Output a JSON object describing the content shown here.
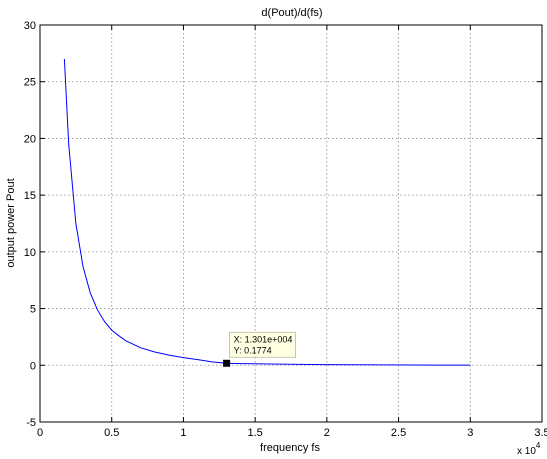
{
  "chart_data": {
    "type": "line",
    "title": "d(Pout)/d(fs)",
    "xlabel": "frequency fs",
    "ylabel": "output power Pout",
    "x_multiplier_label": "x 10",
    "x_multiplier_exponent": "4",
    "xlim": [
      0,
      35000
    ],
    "ylim": [
      -5,
      30
    ],
    "x_ticks": [
      0,
      5000,
      10000,
      15000,
      20000,
      25000,
      30000,
      35000
    ],
    "x_tick_labels": [
      "0",
      "0.5",
      "1",
      "1.5",
      "2",
      "2.5",
      "3",
      "3.5"
    ],
    "y_ticks": [
      -5,
      0,
      5,
      10,
      15,
      20,
      25,
      30
    ],
    "y_tick_labels": [
      "-5",
      "0",
      "5",
      "10",
      "15",
      "20",
      "25",
      "30"
    ],
    "grid": true,
    "series": [
      {
        "color": "#0000ff",
        "x": [
          1700,
          2000,
          2500,
          3000,
          3500,
          4000,
          4500,
          5000,
          5500,
          6000,
          7000,
          8000,
          9000,
          10000,
          11000,
          12000,
          13010,
          14000,
          16000,
          18000,
          20000,
          22000,
          24000,
          26000,
          28000,
          30000
        ],
        "y": [
          27.0,
          19.5,
          12.5,
          8.7,
          6.4,
          4.9,
          3.85,
          3.1,
          2.6,
          2.15,
          1.55,
          1.17,
          0.9,
          0.68,
          0.5,
          0.3,
          0.1774,
          0.15,
          0.11,
          0.08,
          0.06,
          0.045,
          0.035,
          0.025,
          0.018,
          0.012
        ]
      }
    ],
    "datatip": {
      "x": 13010,
      "y": 0.1774,
      "line1": "X: 1.301e+004",
      "line2": "Y: 0.1774"
    }
  }
}
